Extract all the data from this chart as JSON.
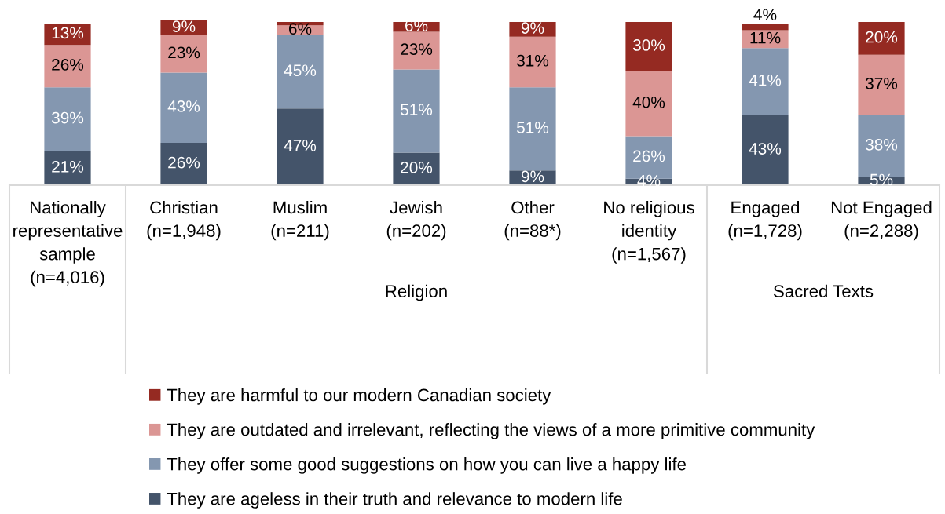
{
  "chart_data": {
    "type": "bar",
    "stacked": true,
    "categories": [
      "Nationally\nrepresentative\nsample\n(n=4,016)",
      "Christian\n(n=1,948)",
      "Muslim\n(n=211)",
      "Jewish\n(n=202)",
      "Other\n(n=88*)",
      "No religious\nidentity\n(n=1,567)",
      "Engaged\n(n=1,728)",
      "Not Engaged\n(n=2,288)"
    ],
    "series": [
      {
        "name": "They are ageless in their truth and relevance to modern life",
        "color": "#44546a",
        "values": [
          21,
          26,
          47,
          20,
          9,
          4,
          43,
          5
        ],
        "value_labels": [
          "21%",
          "26%",
          "47%",
          "20%",
          "9%",
          "4%",
          "43%",
          "5%"
        ]
      },
      {
        "name": "They offer some good suggestions on how you can live a happy life",
        "color": "#8497b0",
        "values": [
          39,
          43,
          45,
          51,
          51,
          26,
          41,
          38
        ],
        "value_labels": [
          "39%",
          "43%",
          "45%",
          "51%",
          "51%",
          "26%",
          "41%",
          "38%"
        ]
      },
      {
        "name": "They are outdated and irrelevant, reflecting the views of a more primitive community",
        "color": "#db9694",
        "values": [
          26,
          23,
          6,
          23,
          31,
          40,
          11,
          37
        ],
        "value_labels": [
          "26%",
          "23%",
          "6%",
          "23%",
          "31%",
          "40%",
          "11%",
          "37%"
        ]
      },
      {
        "name": "They are harmful to our modern Canadian society",
        "color": "#952a22",
        "values": [
          13,
          9,
          2,
          6,
          9,
          30,
          4,
          20
        ],
        "value_labels": [
          "13%",
          "9%",
          null,
          "6%",
          "9%",
          "30%",
          "4%",
          "20%"
        ]
      }
    ],
    "annotations": [
      "Religion",
      "Sacred Texts"
    ],
    "legend": "bottom"
  }
}
